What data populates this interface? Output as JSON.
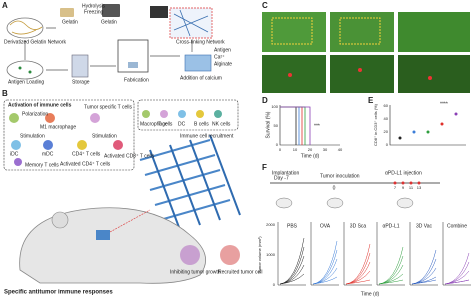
{
  "panel_a": {
    "letter": "A",
    "gelatin_top": "Gelatin",
    "hydrolysis": "Hydrolysis",
    "freezing": "Freezing",
    "gelatin": "Gelatin",
    "network": "Derivatized Gelatin Network",
    "antigen_loading": "Antigen Loading",
    "storage": "Storage",
    "fabrication": "Fabrication",
    "crosslinking": "Cross-linking Network",
    "legend": [
      "Antigen",
      "Ca²⁺",
      "Alginate"
    ],
    "calcium": "Addition of calcium"
  },
  "panel_b": {
    "letter": "B",
    "activation": "Activation of immune cells",
    "polarization": "Polarization",
    "m1": "M1 macrophage",
    "tumor_t": "Tumor specific T cells",
    "stimulation1": "Stimulation",
    "stimulation2": "Stimulation",
    "idc": "iDC",
    "mdc": "mDC",
    "cd8": "Activated CD8⁺ T cells",
    "cd4": "Activated CD4⁺ T cells",
    "memory": "Memory T cells",
    "cd4_plain": "CD4⁺ T cells",
    "cell_types": [
      "Macrophage",
      "T cells",
      "DC",
      "B cells",
      "NK cells"
    ],
    "recruitment": "Immune cell recruitment",
    "inhibit": "Inhibiting tumor growth",
    "recruited_tumor": "Recruited tumor cell",
    "response": "Specific antitumor immune responses"
  },
  "panel_c": {
    "letter": "C"
  },
  "panel_d": {
    "letter": "D",
    "ylabel": "Survival (%)",
    "xlabel": "Time (d)",
    "yticks": [
      "0",
      "50",
      "100"
    ],
    "xticks": [
      "0",
      "10",
      "20",
      "30",
      "40"
    ],
    "significance": "***"
  },
  "panel_e": {
    "letter": "E",
    "ylabel": "CD8⁺ in CD3⁺ cells (%)",
    "yticks": [
      "0",
      "20",
      "40",
      "60"
    ],
    "significance": "****"
  },
  "panel_f": {
    "letter": "F",
    "implantation": "Implantation",
    "day_minus7": "Day -7",
    "inoculation": "Tumor inoculation",
    "day0": "0",
    "injection": "αPD-L1 injection",
    "injection_days": [
      "7",
      "9",
      "11",
      "13"
    ],
    "ylabel": "Tumor volume (mm³)",
    "xlabel": "Time (d)",
    "yticks": [
      "0",
      "1000",
      "2000"
    ],
    "plots": [
      {
        "name": "PBS",
        "color": "#222222"
      },
      {
        "name": "OVA",
        "color": "#3b7dd8"
      },
      {
        "name": "3D Sca",
        "color": "#e0302a"
      },
      {
        "name": "αPD-L1",
        "color": "#2e9e3e"
      },
      {
        "name": "3D Vac",
        "color": "#2a5cc0"
      },
      {
        "name": "Combine",
        "color": "#8a3fb5"
      }
    ]
  }
}
